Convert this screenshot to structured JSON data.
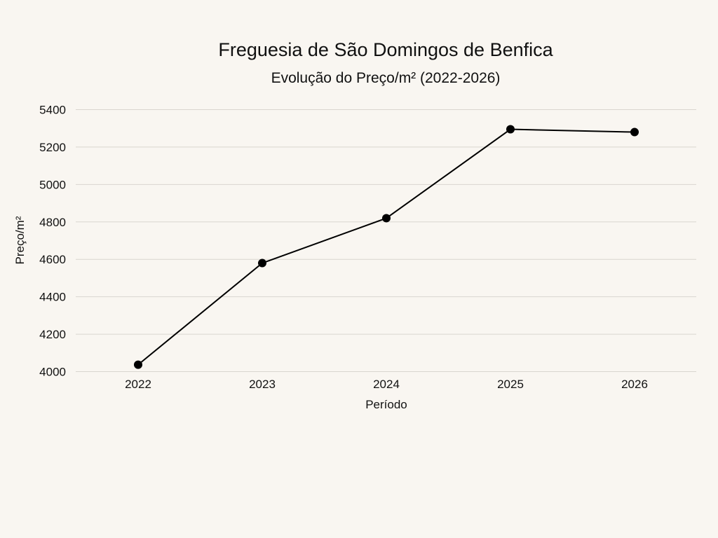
{
  "chart_data": {
    "type": "line",
    "title": "Freguesia de São Domingos de Benfica",
    "subtitle": "Evolução do Preço/m² (2022-2026)",
    "xlabel": "Período",
    "ylabel": "Preço/m²",
    "categories": [
      "2022",
      "2023",
      "2024",
      "2025",
      "2026"
    ],
    "series": [
      {
        "name": "Preço/m²",
        "values": [
          4037,
          4580,
          4820,
          5295,
          5280
        ],
        "color": "#000000"
      }
    ],
    "ylim": [
      4000,
      5400
    ],
    "yticks": [
      4000,
      4200,
      4400,
      4600,
      4800,
      5000,
      5200,
      5400
    ],
    "grid": true,
    "legend": "none",
    "background": "#f9f6f1",
    "gridline_color": "#d9d5cf"
  }
}
